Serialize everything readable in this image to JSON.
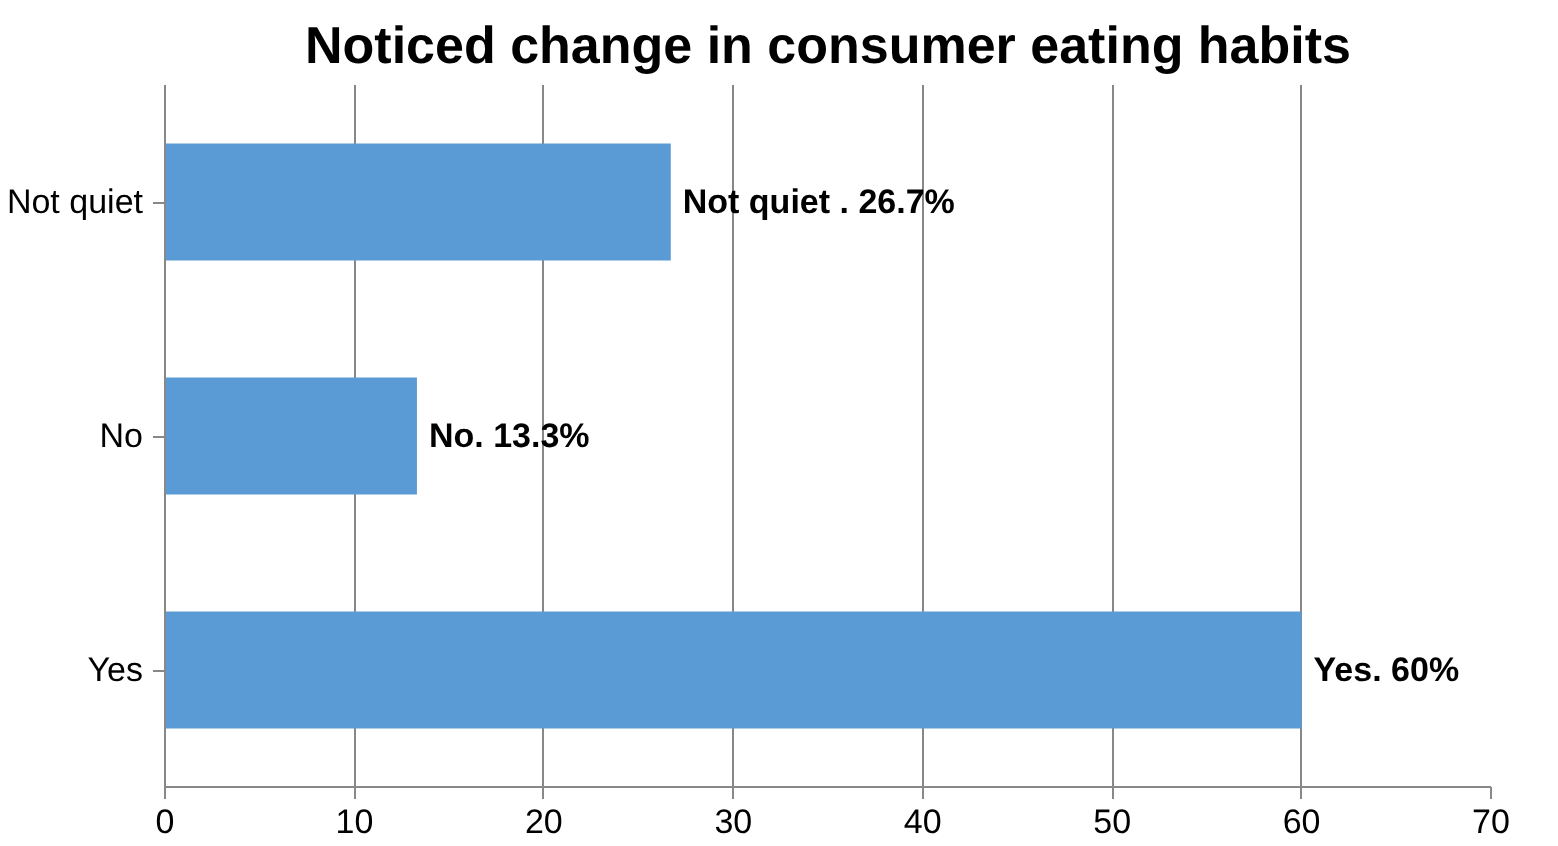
{
  "chart_data": {
    "type": "bar",
    "orientation": "horizontal",
    "title": "Noticed change in consumer eating habits",
    "categories": [
      "Not quiet",
      "No",
      "Yes"
    ],
    "values": [
      26.7,
      13.3,
      60
    ],
    "color": "#5b9bd5",
    "value_labels": [
      "Not quiet . 26.7%",
      "No. 13.3%",
      "Yes. 60%"
    ],
    "xlim": [
      0,
      70
    ],
    "xticks": [
      0,
      10,
      20,
      30,
      40,
      50,
      60,
      70
    ],
    "grid": "x"
  }
}
